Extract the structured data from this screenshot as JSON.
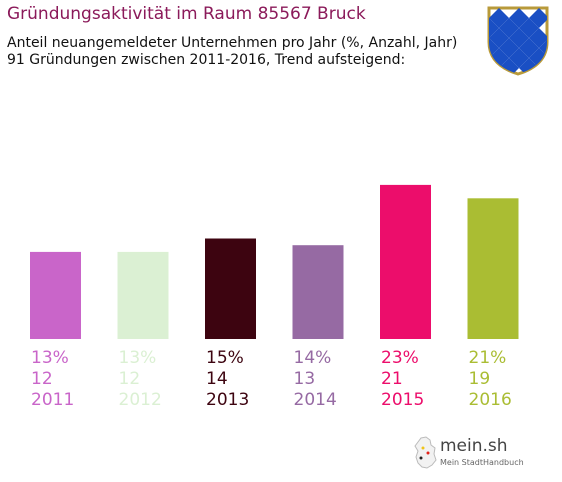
{
  "title": "Gründungsaktivität im Raum 85567 Bruck",
  "subtitle_line1": "Anteil neuangemeldeter Unternehmen pro Jahr (%, Anzahl, Jahr)",
  "subtitle_line2": "91 Gründungen zwischen 2011-2016, Trend aufsteigend:",
  "logo": {
    "text": "mein.sh",
    "subtext": "Mein StadtHandbuch"
  },
  "chart_data": {
    "type": "bar",
    "categories": [
      "2011",
      "2012",
      "2013",
      "2014",
      "2015",
      "2016"
    ],
    "percent_labels": [
      "13%",
      "13%",
      "15%",
      "14%",
      "23%",
      "21%"
    ],
    "counts": [
      12,
      12,
      14,
      13,
      21,
      19
    ],
    "values": [
      13,
      13,
      15,
      14,
      23,
      21
    ],
    "colors": [
      "#c965c9",
      "#dbf0d3",
      "#3d0410",
      "#966aa3",
      "#ec0d6b",
      "#aabd33"
    ],
    "xlabel": "",
    "ylabel": "",
    "grid": false
  }
}
